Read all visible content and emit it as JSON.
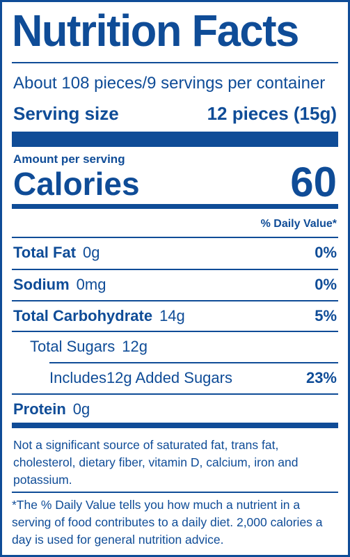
{
  "header": {
    "title": "Nutrition Facts",
    "servings_per_container": "About 108 pieces/9 servings per container",
    "serving_size_label": "Serving size",
    "serving_size_value": "12 pieces (15g)"
  },
  "calories": {
    "amount_per_serving": "Amount per serving",
    "label": "Calories",
    "value": "60"
  },
  "daily_value_header": "% Daily Value*",
  "nutrients": [
    {
      "name": "Total Fat",
      "amount": "0g",
      "dv": "0%"
    },
    {
      "name": "Sodium",
      "amount": "0mg",
      "dv": "0%"
    },
    {
      "name": "Total Carbohydrate",
      "amount": "14g",
      "dv": "5%"
    },
    {
      "name": "Total Sugars",
      "amount": "12g"
    },
    {
      "name": "Includes12g Added Sugars",
      "dv": "23%"
    },
    {
      "name": "Protein",
      "amount": "0g"
    }
  ],
  "footnotes": [
    "Not a significant source of saturated fat, trans fat, cholesterol, dietary fiber, vitamin D, calcium, iron and potassium.",
    "*The % Daily Value tells you how much a nutrient in a serving of food contributes to a daily diet. 2,000 calories a day is used for general nutrition advice."
  ]
}
